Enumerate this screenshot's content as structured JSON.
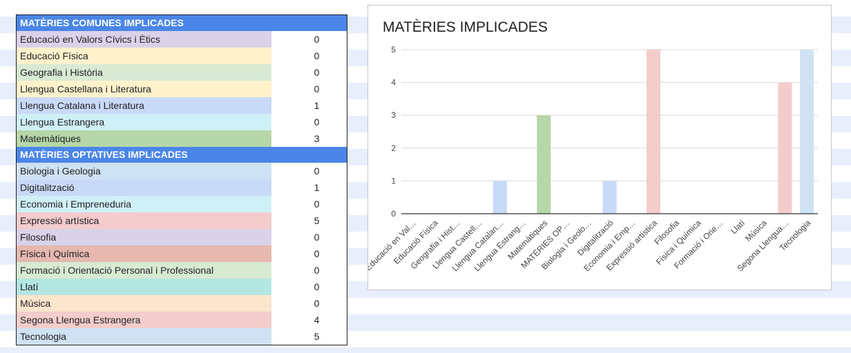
{
  "table": {
    "common_header": "MATÈRIES COMUNES IMPLICADES",
    "common_rows": [
      {
        "label": "Educació en Valors Cívics i Ètics",
        "value": "0",
        "color": "#d9d2e9"
      },
      {
        "label": "Educació Física",
        "value": "0",
        "color": "#fff2cc"
      },
      {
        "label": "Geografia i Història",
        "value": "0",
        "color": "#d9ead3"
      },
      {
        "label": "Llengua Castellana i Literatura",
        "value": "0",
        "color": "#fff2cc"
      },
      {
        "label": "Llengua Catalana i Literatura",
        "value": "1",
        "color": "#c9daf8"
      },
      {
        "label": "Llengua Estrangera",
        "value": "0",
        "color": "#d0f0f7"
      },
      {
        "label": "Matemàtiques",
        "value": "3",
        "color": "#b6d7a8"
      }
    ],
    "optional_header": "MATÈRIES OPTATIVES IMPLICADES",
    "optional_rows": [
      {
        "label": "Biologia i Geologia",
        "value": "0",
        "color": "#cfe2f3"
      },
      {
        "label": "Digitalització",
        "value": "1",
        "color": "#c9daf8"
      },
      {
        "label": "Economia i Empreneduria",
        "value": "0",
        "color": "#d0f0f7"
      },
      {
        "label": "Expressió artística",
        "value": "5",
        "color": "#f4cccc"
      },
      {
        "label": "Filosofia",
        "value": "0",
        "color": "#d9d2e9"
      },
      {
        "label": "Física i Química",
        "value": "0",
        "color": "#e6b8af"
      },
      {
        "label": "Formació i Orientació Personal i Professional",
        "value": "0",
        "color": "#d9ead3"
      },
      {
        "label": "Llatí",
        "value": "0",
        "color": "#b4e7e2"
      },
      {
        "label": "Música",
        "value": "0",
        "color": "#fce5cd"
      },
      {
        "label": "Segona Llengua Estrangera",
        "value": "4",
        "color": "#f4cccc"
      },
      {
        "label": "Tecnologia",
        "value": "5",
        "color": "#cfe2f3"
      }
    ]
  },
  "chart_data": {
    "type": "bar",
    "title": "MATÈRIES IMPLICADES",
    "xlabel": "",
    "ylabel": "",
    "ylim": [
      0,
      5
    ],
    "yticks": [
      "0",
      "1",
      "2",
      "3",
      "4",
      "5"
    ],
    "grid": true,
    "legend": "none",
    "categories": [
      "Educació en Val…",
      "Educació Física",
      "Geografia i Hist…",
      "Llengua Castell…",
      "Llengua Catalan…",
      "Llengua Estrang…",
      "Matemàtiques",
      "MATÈRIES OP…",
      "Biologia i Geolo…",
      "Digitalització",
      "Economia i Emp…",
      "Expressió artística",
      "Filosofia",
      "Física i Química",
      "Formació i Orie…",
      "Llatí",
      "Música",
      "Segona Llengua…",
      "Tecnologia"
    ],
    "values": [
      0,
      0,
      0,
      0,
      1,
      0,
      3,
      0,
      0,
      1,
      0,
      5,
      0,
      0,
      0,
      0,
      0,
      4,
      5
    ],
    "colors": [
      "#d9d2e9",
      "#fff2cc",
      "#d9ead3",
      "#fff2cc",
      "#c9daf8",
      "#d0f0f7",
      "#b6d7a8",
      "#ffffff",
      "#cfe2f3",
      "#c9daf8",
      "#d0f0f7",
      "#f4cccc",
      "#d9d2e9",
      "#e6b8af",
      "#d9ead3",
      "#b4e7e2",
      "#fce5cd",
      "#f4cccc",
      "#cfe2f3"
    ]
  }
}
